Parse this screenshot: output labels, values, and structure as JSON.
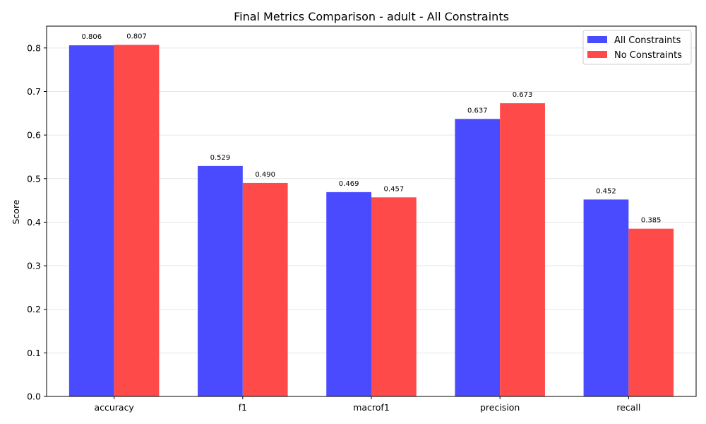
{
  "chart_data": {
    "type": "bar",
    "title": "Final Metrics Comparison - adult - All Constraints",
    "xlabel": "",
    "ylabel": "Score",
    "categories": [
      "accuracy",
      "f1",
      "macrof1",
      "precision",
      "recall"
    ],
    "series": [
      {
        "name": "All Constraints",
        "color": "#4a4aff",
        "values": [
          0.806,
          0.529,
          0.469,
          0.637,
          0.452
        ],
        "labels": [
          "0.806",
          "0.529",
          "0.469",
          "0.637",
          "0.452"
        ]
      },
      {
        "name": "No Constraints",
        "color": "#ff4a4a",
        "values": [
          0.807,
          0.49,
          0.457,
          0.673,
          0.385
        ],
        "labels": [
          "0.807",
          "0.490",
          "0.457",
          "0.673",
          "0.385"
        ]
      }
    ],
    "ylim": [
      0,
      0.85
    ],
    "yticks": [
      "0.0",
      "0.1",
      "0.2",
      "0.3",
      "0.4",
      "0.5",
      "0.6",
      "0.7",
      "0.8"
    ],
    "grid": "y",
    "legend_position": "top-right"
  }
}
